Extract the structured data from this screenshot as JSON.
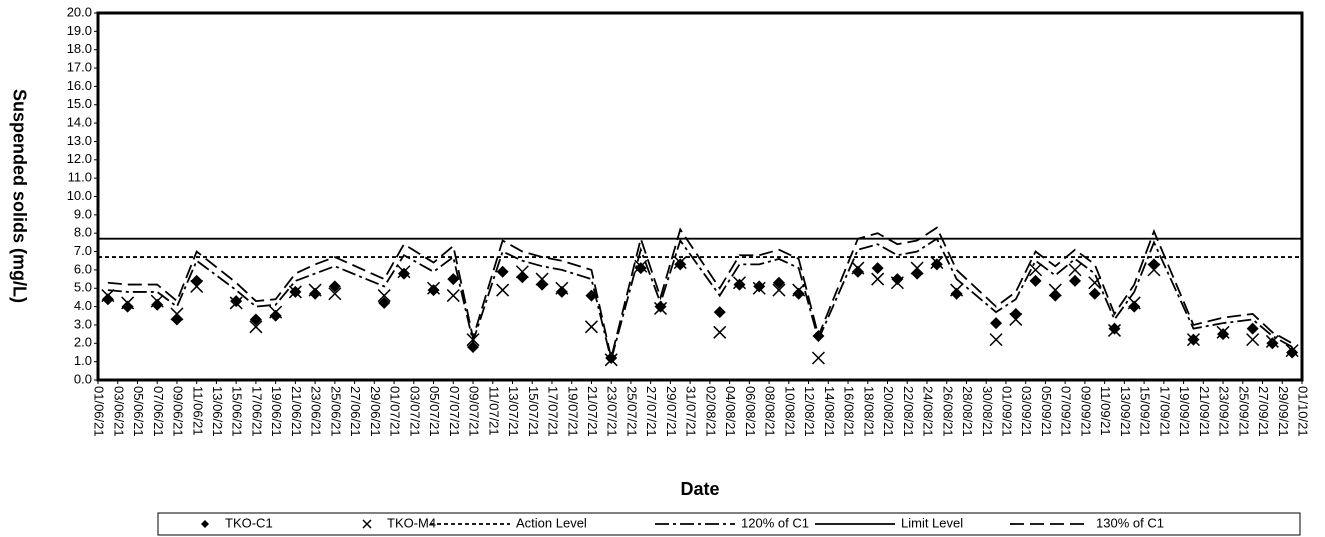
{
  "chart_data": {
    "type": "scatter-line",
    "xlabel": "Date",
    "ylabel": "Suspended solids (mg/L)",
    "xlim": [
      "01/06/21",
      "01/10/21"
    ],
    "xticks": [
      "01/06/21",
      "03/06/21",
      "05/06/21",
      "07/06/21",
      "09/06/21",
      "11/06/21",
      "13/06/21",
      "15/06/21",
      "17/06/21",
      "19/06/21",
      "21/06/21",
      "23/06/21",
      "25/06/21",
      "27/06/21",
      "29/06/21",
      "01/07/21",
      "03/07/21",
      "05/07/21",
      "07/07/21",
      "09/07/21",
      "11/07/21",
      "13/07/21",
      "15/07/21",
      "17/07/21",
      "19/07/21",
      "21/07/21",
      "23/07/21",
      "25/07/21",
      "27/07/21",
      "29/07/21",
      "31/07/21",
      "02/08/21",
      "04/08/21",
      "06/08/21",
      "08/08/21",
      "10/08/21",
      "12/08/21",
      "14/08/21",
      "16/08/21",
      "18/08/21",
      "20/08/21",
      "22/08/21",
      "24/08/21",
      "26/08/21",
      "28/08/21",
      "30/08/21",
      "01/09/21",
      "03/09/21",
      "05/09/21",
      "07/09/21",
      "09/09/21",
      "11/09/21",
      "13/09/21",
      "15/09/21",
      "17/09/21",
      "19/09/21",
      "21/09/21",
      "23/09/21",
      "25/09/21",
      "27/09/21",
      "29/09/21",
      "01/10/21"
    ],
    "ylim": [
      0,
      20
    ],
    "yticks": [
      {
        "value": 0,
        "label": "0.0"
      },
      {
        "value": 1,
        "label": "1.0"
      },
      {
        "value": 2,
        "label": "2.0"
      },
      {
        "value": 3,
        "label": "3.0"
      },
      {
        "value": 4,
        "label": "4.0"
      },
      {
        "value": 5,
        "label": "5.0"
      },
      {
        "value": 6,
        "label": "6.0"
      },
      {
        "value": 7,
        "label": "7.0"
      },
      {
        "value": 8,
        "label": "8.0"
      },
      {
        "value": 9,
        "label": "9.0"
      },
      {
        "value": 10,
        "label": "10.0"
      },
      {
        "value": 11,
        "label": "11.0"
      },
      {
        "value": 12,
        "label": "12.0"
      },
      {
        "value": 13,
        "label": "13.0"
      },
      {
        "value": 14,
        "label": "14.0"
      },
      {
        "value": 15,
        "label": "15.0"
      },
      {
        "value": 16,
        "label": "16.0"
      },
      {
        "value": 17,
        "label": "17.0"
      },
      {
        "value": 18,
        "label": "18.0"
      },
      {
        "value": 19,
        "label": "19.0"
      },
      {
        "value": 20,
        "label": "20.0"
      }
    ],
    "x": [
      "02/06/21",
      "04/06/21",
      "07/06/21",
      "09/06/21",
      "11/06/21",
      "15/06/21",
      "17/06/21",
      "19/06/21",
      "21/06/21",
      "23/06/21",
      "25/06/21",
      "30/06/21",
      "02/07/21",
      "05/07/21",
      "07/07/21",
      "09/07/21",
      "12/07/21",
      "14/07/21",
      "16/07/21",
      "18/07/21",
      "21/07/21",
      "23/07/21",
      "26/07/21",
      "28/07/21",
      "30/07/21",
      "03/08/21",
      "05/08/21",
      "07/08/21",
      "09/08/21",
      "11/08/21",
      "13/08/21",
      "17/08/21",
      "19/08/21",
      "21/08/21",
      "23/08/21",
      "25/08/21",
      "27/08/21",
      "31/08/21",
      "02/09/21",
      "04/09/21",
      "06/09/21",
      "08/09/21",
      "10/09/21",
      "12/09/21",
      "14/09/21",
      "16/09/21",
      "20/09/21",
      "23/09/21",
      "26/09/21",
      "28/09/21",
      "30/09/21"
    ],
    "series": [
      {
        "name": "TKO-C1",
        "color": "#000000",
        "marker": "diamond",
        "values": [
          4.4,
          4.0,
          4.1,
          3.3,
          5.4,
          4.3,
          3.3,
          3.5,
          4.8,
          4.7,
          5.1,
          4.2,
          5.8,
          4.9,
          5.5,
          1.8,
          5.9,
          5.6,
          5.2,
          4.8,
          4.6,
          1.2,
          6.1,
          4.0,
          6.3,
          3.7,
          5.2,
          5.1,
          5.3,
          4.7,
          2.4,
          5.9,
          6.1,
          5.5,
          5.8,
          6.3,
          4.7,
          3.1,
          3.6,
          5.4,
          4.6,
          5.4,
          4.7,
          2.8,
          4.0,
          6.3,
          2.2,
          2.5,
          2.8,
          2.0,
          1.5
        ]
      },
      {
        "name": "TKO-M4",
        "color": "#000000",
        "marker": "x",
        "values": [
          4.6,
          4.2,
          4.3,
          3.6,
          5.1,
          4.2,
          2.9,
          3.7,
          4.8,
          4.9,
          4.7,
          4.6,
          5.9,
          5.0,
          4.6,
          2.2,
          4.9,
          5.9,
          5.5,
          5.0,
          2.9,
          1.1,
          6.2,
          3.9,
          6.4,
          2.6,
          5.3,
          5.0,
          4.9,
          4.9,
          1.2,
          6.1,
          5.5,
          5.3,
          6.1,
          6.4,
          4.9,
          2.2,
          3.3,
          6.0,
          4.9,
          6.0,
          5.3,
          2.7,
          4.2,
          6.0,
          2.2,
          2.6,
          2.2,
          2.1,
          1.6
        ]
      },
      {
        "name": "Action Level",
        "color": "#000000",
        "dash": "4 3",
        "value": 6.7
      },
      {
        "name": "120% of C1",
        "color": "#000000",
        "dash": "14 4 3 4",
        "values": [
          4.9,
          4.8,
          4.8,
          4.0,
          6.5,
          4.9,
          4.0,
          4.1,
          5.4,
          5.8,
          6.2,
          5.1,
          6.8,
          5.9,
          6.7,
          2.1,
          7.0,
          6.5,
          6.2,
          6.0,
          5.5,
          1.1,
          7.1,
          4.2,
          7.6,
          4.6,
          6.3,
          6.3,
          6.6,
          6.1,
          2.2,
          7.1,
          7.4,
          6.8,
          7.0,
          7.7,
          5.5,
          3.7,
          4.4,
          6.5,
          5.7,
          6.6,
          5.8,
          3.3,
          4.8,
          7.5,
          2.8,
          3.1,
          3.3,
          2.4,
          1.8
        ]
      },
      {
        "name": "Limit Level",
        "color": "#000000",
        "dash": "",
        "value": 7.7
      },
      {
        "name": "130% of C1",
        "color": "#000000",
        "dash": "14 6",
        "values": [
          5.3,
          5.2,
          5.2,
          4.3,
          7.0,
          5.3,
          4.3,
          4.4,
          5.8,
          6.3,
          6.7,
          5.5,
          7.4,
          6.4,
          7.3,
          2.3,
          7.6,
          7.0,
          6.7,
          6.5,
          6.0,
          1.2,
          7.7,
          4.5,
          8.2,
          5.0,
          6.8,
          6.8,
          7.1,
          6.6,
          2.4,
          7.7,
          8.0,
          7.4,
          7.6,
          8.3,
          6.0,
          4.0,
          4.8,
          7.0,
          6.2,
          7.1,
          6.3,
          3.6,
          5.2,
          8.1,
          3.0,
          3.4,
          3.6,
          2.6,
          2.0
        ]
      }
    ]
  }
}
